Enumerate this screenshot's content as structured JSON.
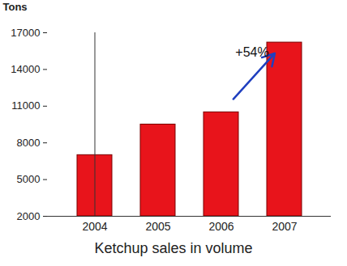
{
  "chart_data": {
    "type": "bar",
    "title": "Ketchup sales in volume",
    "y_label": "Tons",
    "categories": [
      "2004",
      "2005",
      "2006",
      "2007"
    ],
    "values": [
      7000,
      9500,
      10500,
      16200
    ],
    "color": "#e8141b",
    "annotation": "+54%",
    "ylim": [
      2000,
      17000
    ],
    "yticks": [
      2000,
      5000,
      8000,
      11000,
      14000,
      17000
    ],
    "grid": false
  }
}
